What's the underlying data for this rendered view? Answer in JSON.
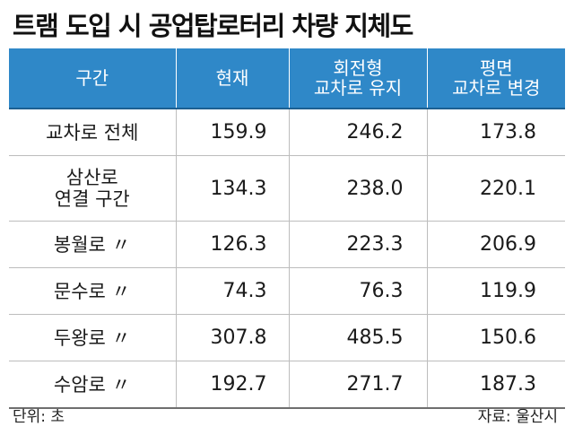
{
  "title": "트램 도입 시 공업탑로터리 차량 지체도",
  "chart_data": {
    "type": "table",
    "columns": [
      {
        "key": "section",
        "label": [
          "구간"
        ]
      },
      {
        "key": "current",
        "label": [
          "현재"
        ]
      },
      {
        "key": "rotary",
        "label": [
          "회전형",
          "교차로 유지"
        ]
      },
      {
        "key": "flat",
        "label": [
          "평면",
          "교차로 변경"
        ]
      }
    ],
    "rows": [
      {
        "name": [
          "교차로 전체"
        ],
        "current": "159.9",
        "rotary": "246.2",
        "flat": "173.8"
      },
      {
        "name": [
          "삼산로",
          "연결 구간"
        ],
        "current": "134.3",
        "rotary": "238.0",
        "flat": "220.1"
      },
      {
        "name": [
          "봉월로 〃"
        ],
        "current": "126.3",
        "rotary": "223.3",
        "flat": "206.9"
      },
      {
        "name": [
          "문수로 〃"
        ],
        "current": "74.3",
        "rotary": "76.3",
        "flat": "119.9"
      },
      {
        "name": [
          "두왕로 〃"
        ],
        "current": "307.8",
        "rotary": "485.5",
        "flat": "150.6"
      },
      {
        "name": [
          "수암로 〃"
        ],
        "current": "192.7",
        "rotary": "271.7",
        "flat": "187.3"
      }
    ]
  },
  "unit_note": "단위: 초",
  "source_note": "자료: 울산시",
  "colors": {
    "header_bg": "#2f88c8",
    "header_text": "#ffffff"
  }
}
